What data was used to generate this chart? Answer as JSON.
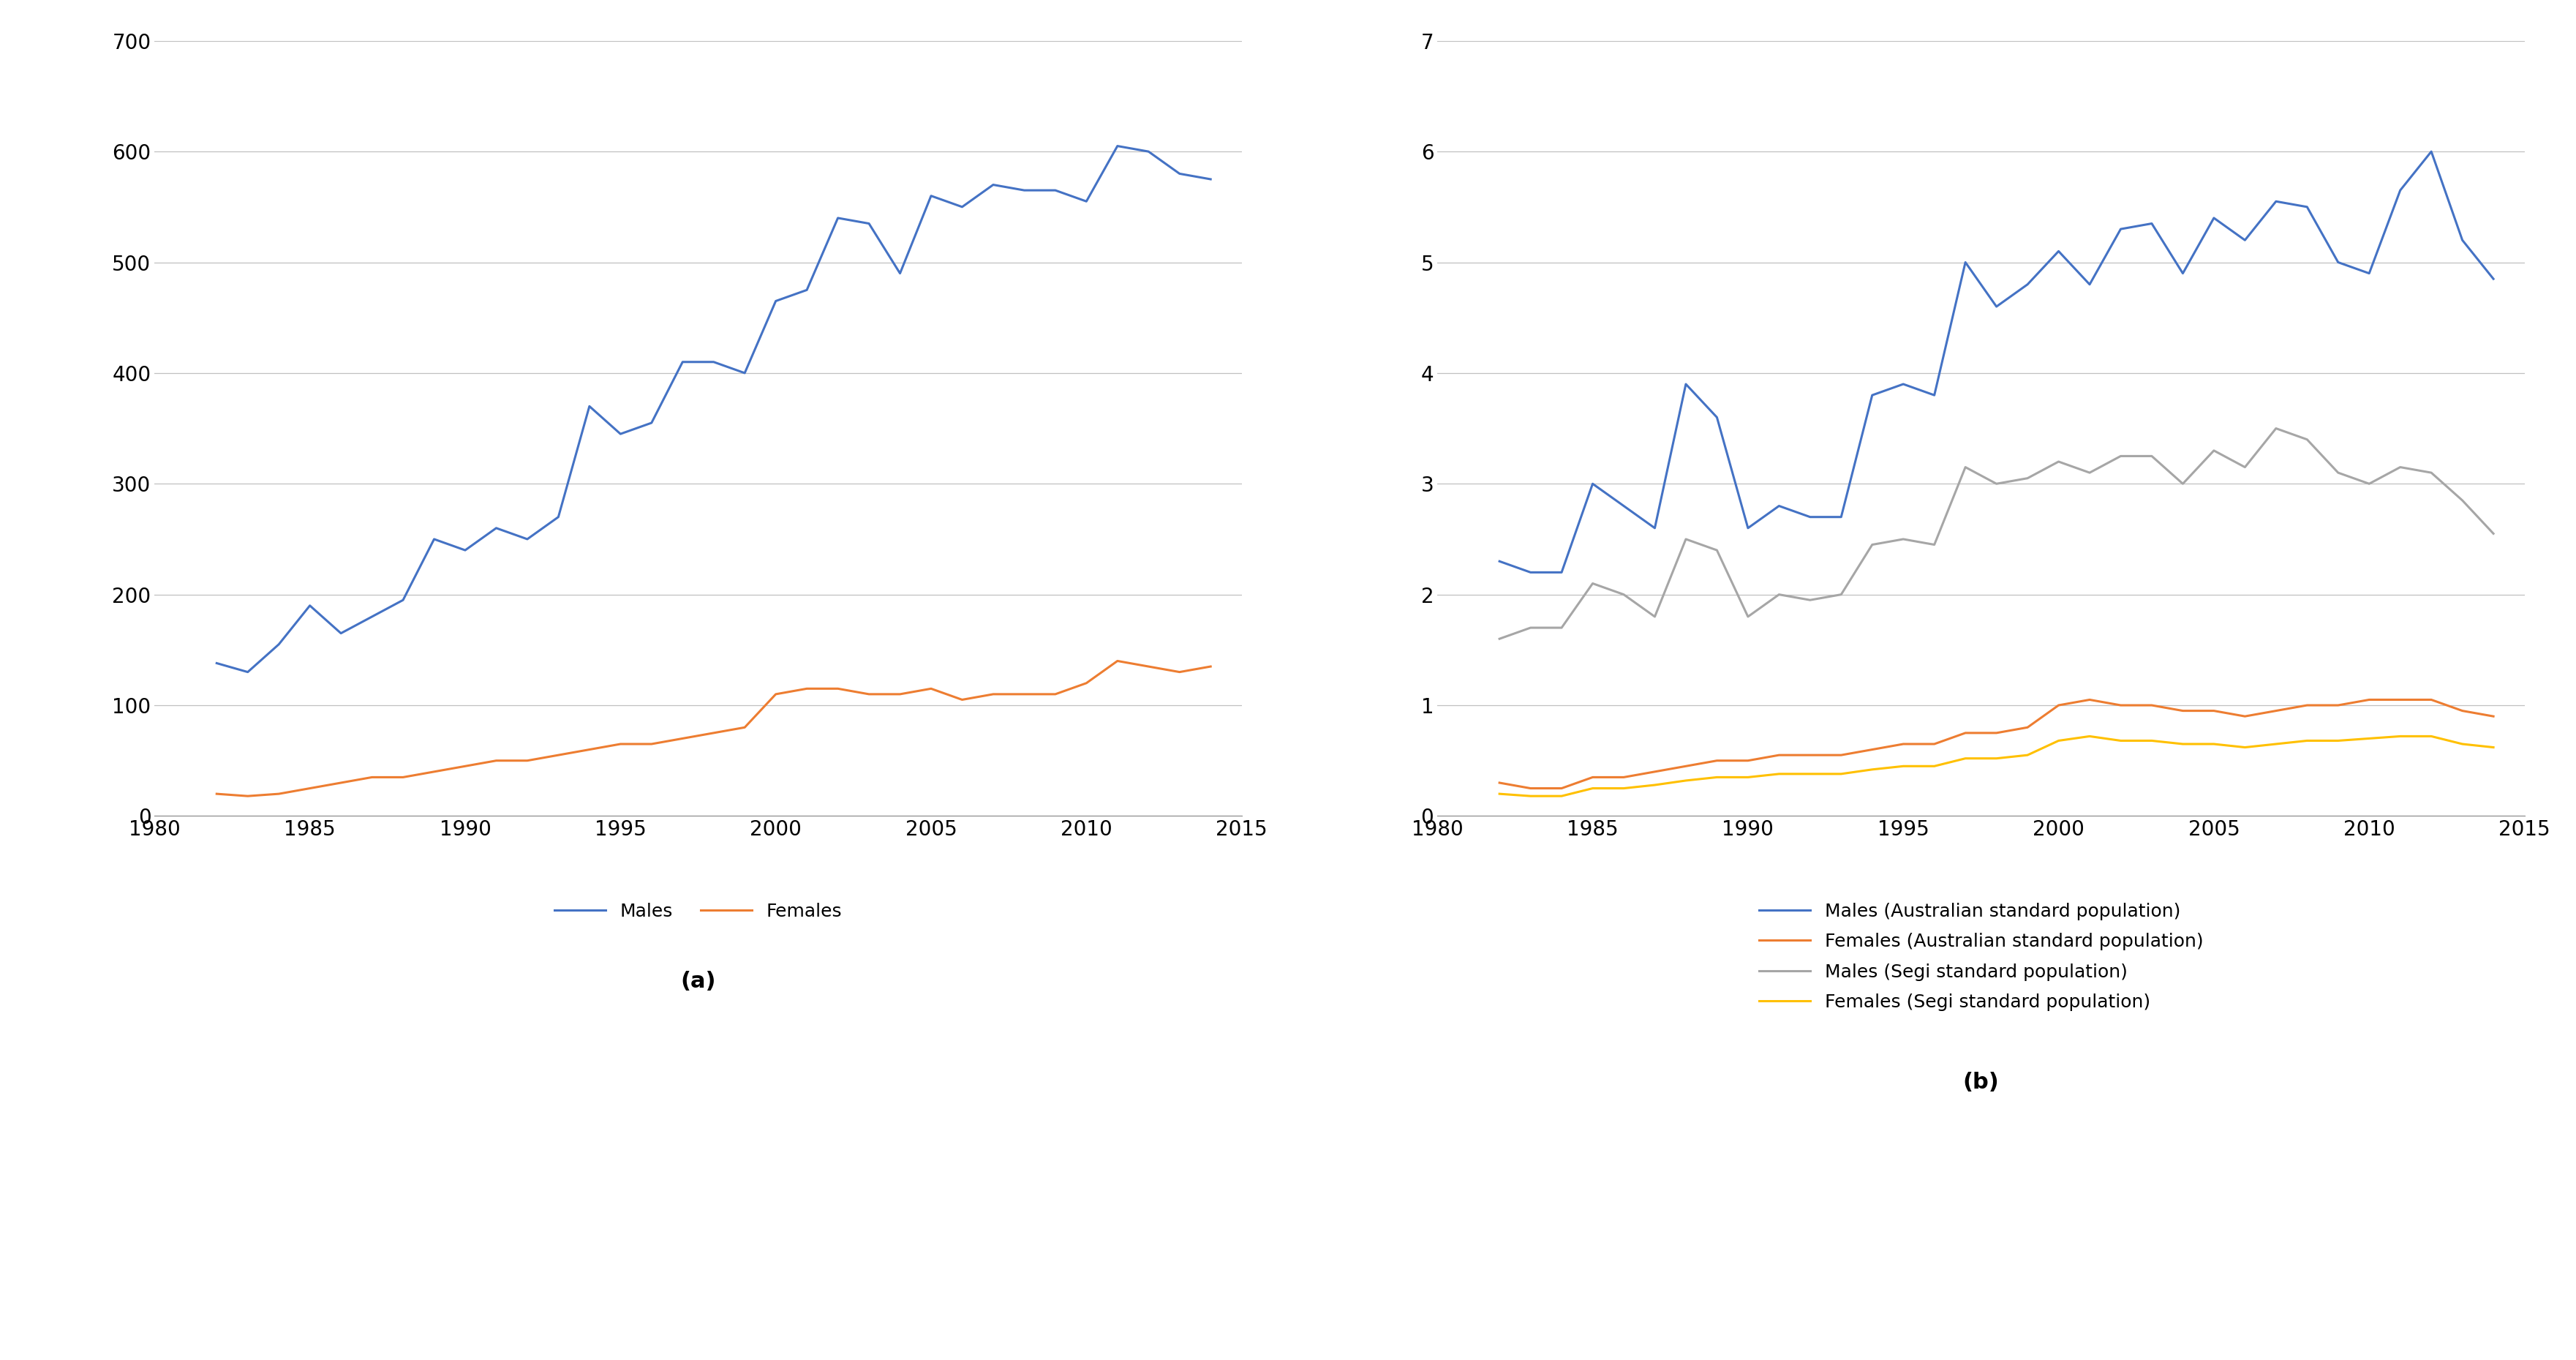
{
  "years": [
    1982,
    1983,
    1984,
    1985,
    1986,
    1987,
    1988,
    1989,
    1990,
    1991,
    1992,
    1993,
    1994,
    1995,
    1996,
    1997,
    1998,
    1999,
    2000,
    2001,
    2002,
    2003,
    2004,
    2005,
    2006,
    2007,
    2008,
    2009,
    2010,
    2011,
    2012,
    2013,
    2014
  ],
  "males_a": [
    138,
    130,
    155,
    190,
    165,
    180,
    195,
    250,
    240,
    260,
    250,
    270,
    370,
    345,
    355,
    410,
    410,
    400,
    465,
    475,
    540,
    535,
    490,
    560,
    550,
    570,
    565,
    565,
    555,
    605,
    600,
    580,
    575
  ],
  "females_a": [
    20,
    18,
    20,
    25,
    30,
    35,
    35,
    40,
    45,
    50,
    50,
    55,
    60,
    65,
    65,
    70,
    75,
    80,
    110,
    115,
    115,
    110,
    110,
    115,
    105,
    110,
    110,
    110,
    120,
    140,
    135,
    130,
    135
  ],
  "males_aus": [
    2.3,
    2.2,
    2.2,
    3.0,
    2.8,
    2.6,
    3.9,
    3.6,
    2.6,
    2.8,
    2.7,
    2.7,
    3.8,
    3.9,
    3.8,
    5.0,
    4.6,
    4.8,
    5.1,
    4.8,
    5.3,
    5.35,
    4.9,
    5.4,
    5.2,
    5.55,
    5.5,
    5.0,
    4.9,
    5.65,
    6.0,
    5.2,
    4.85
  ],
  "females_aus": [
    0.3,
    0.25,
    0.25,
    0.35,
    0.35,
    0.4,
    0.45,
    0.5,
    0.5,
    0.55,
    0.55,
    0.55,
    0.6,
    0.65,
    0.65,
    0.75,
    0.75,
    0.8,
    1.0,
    1.05,
    1.0,
    1.0,
    0.95,
    0.95,
    0.9,
    0.95,
    1.0,
    1.0,
    1.05,
    1.05,
    1.05,
    0.95,
    0.9
  ],
  "males_segi": [
    1.6,
    1.7,
    1.7,
    2.1,
    2.0,
    1.8,
    2.5,
    2.4,
    1.8,
    2.0,
    1.95,
    2.0,
    2.45,
    2.5,
    2.45,
    3.15,
    3.0,
    3.05,
    3.2,
    3.1,
    3.25,
    3.25,
    3.0,
    3.3,
    3.15,
    3.5,
    3.4,
    3.1,
    3.0,
    3.15,
    3.1,
    2.85,
    2.55
  ],
  "females_segi": [
    0.2,
    0.18,
    0.18,
    0.25,
    0.25,
    0.28,
    0.32,
    0.35,
    0.35,
    0.38,
    0.38,
    0.38,
    0.42,
    0.45,
    0.45,
    0.52,
    0.52,
    0.55,
    0.68,
    0.72,
    0.68,
    0.68,
    0.65,
    0.65,
    0.62,
    0.65,
    0.68,
    0.68,
    0.7,
    0.72,
    0.72,
    0.65,
    0.62
  ],
  "color_blue": "#4472C4",
  "color_orange": "#ED7D31",
  "color_gray": "#A6A6A6",
  "color_yellow": "#FFC000",
  "background": "#FFFFFF",
  "grid_color": "#C0C0C0",
  "label_a": "(a)",
  "label_b": "(b)",
  "legend_a_males": "Males",
  "legend_a_females": "Females",
  "legend_b_males_aus": "Males (Australian standard population)",
  "legend_b_females_aus": "Females (Australian standard population)",
  "legend_b_males_segi": "Males (Segi standard population)",
  "legend_b_females_segi": "Females (Segi standard population)",
  "xlim": [
    1980,
    2015
  ],
  "xticks": [
    1980,
    1985,
    1990,
    1995,
    2000,
    2005,
    2010,
    2015
  ],
  "ylim_a": [
    0,
    700
  ],
  "yticks_a": [
    0,
    100,
    200,
    300,
    400,
    500,
    600,
    700
  ],
  "ylim_b": [
    0,
    7
  ],
  "yticks_b": [
    0,
    1,
    2,
    3,
    4,
    5,
    6,
    7
  ],
  "linewidth": 2.2,
  "fontsize_tick": 20,
  "fontsize_legend": 18,
  "fontsize_label": 22
}
